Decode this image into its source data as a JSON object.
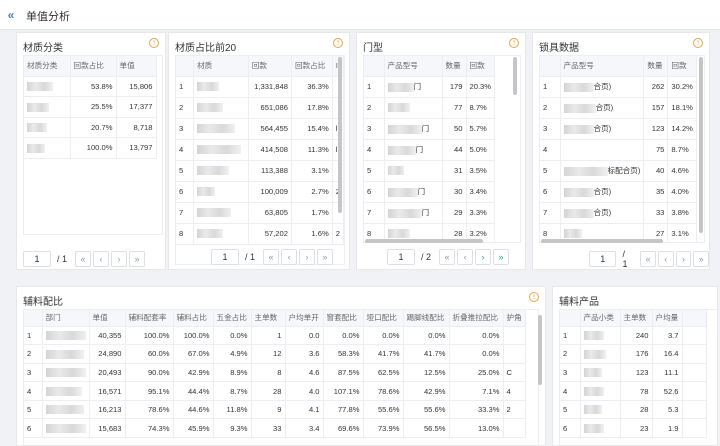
{
  "header": {
    "title": "单值分析",
    "collapse_icon": "«"
  },
  "panel1": {
    "title": "材质分类",
    "cols": [
      "材质分类",
      "回款占比",
      "单值"
    ],
    "rows": [
      [
        "",
        "53.8%",
        "15,806"
      ],
      [
        "",
        "25.5%",
        "17,377"
      ],
      [
        "",
        "20.7%",
        "8,718"
      ],
      [
        "",
        "100.0%",
        "13,797"
      ]
    ],
    "page": "1",
    "total": "/ 1"
  },
  "panel2": {
    "title": "材质占比前20",
    "cols": [
      "",
      "材质",
      "回款",
      "回款占比",
      "I"
    ],
    "rows": [
      [
        "1",
        "",
        "1,331,848",
        "36.3%",
        ""
      ],
      [
        "2",
        "",
        "651,086",
        "17.8%",
        ""
      ],
      [
        "3",
        "",
        "564,455",
        "15.4%",
        "l"
      ],
      [
        "4",
        "",
        "414,508",
        "11.3%",
        "l"
      ],
      [
        "5",
        "",
        "113,388",
        "3.1%",
        ""
      ],
      [
        "6",
        "",
        "100,009",
        "2.7%",
        "2"
      ],
      [
        "7",
        "",
        "63,805",
        "1.7%",
        ""
      ],
      [
        "8",
        "",
        "57,202",
        "1.6%",
        "2"
      ]
    ],
    "page": "1",
    "total": "/ 1"
  },
  "panel3": {
    "title": "门型",
    "cols": [
      "",
      "产品型号",
      "数量",
      "回款"
    ],
    "rows": [
      [
        "1",
        "门",
        "179",
        "20.3%"
      ],
      [
        "2",
        "",
        "77",
        "8.7%"
      ],
      [
        "3",
        "门",
        "50",
        "5.7%"
      ],
      [
        "4",
        "门",
        "44",
        "5.0%"
      ],
      [
        "5",
        "",
        "31",
        "3.5%"
      ],
      [
        "6",
        "门",
        "30",
        "3.4%"
      ],
      [
        "7",
        "门",
        "29",
        "3.3%"
      ],
      [
        "8",
        "",
        "28",
        "3.2%"
      ]
    ],
    "page": "1",
    "total": "/ 2"
  },
  "panel4": {
    "title": "锁具数据",
    "cols": [
      "",
      "产品型号",
      "数量",
      "回款"
    ],
    "rows": [
      [
        "1",
        "合页)",
        "262",
        "30.2%"
      ],
      [
        "2",
        "合页)",
        "157",
        "18.1%"
      ],
      [
        "3",
        "合页)",
        "123",
        "14.2%"
      ],
      [
        "4",
        "",
        "75",
        "8.7%"
      ],
      [
        "5",
        "标配合页)",
        "40",
        "4.6%"
      ],
      [
        "6",
        "合页)",
        "35",
        "4.0%"
      ],
      [
        "7",
        "合页)",
        "33",
        "3.8%"
      ],
      [
        "8",
        "",
        "27",
        "3.1%"
      ]
    ],
    "page": "1",
    "total": "/ 1"
  },
  "panel5": {
    "title": "辅料配比",
    "cols": [
      "",
      "部门",
      "单值",
      "辅料配套率",
      "辅料占比",
      "五金占比",
      "主单数",
      "户均单开",
      "窗套配比",
      "垭口配比",
      "踢脚线配比",
      "折叠推拉配比",
      "护角"
    ],
    "rows": [
      [
        "1",
        "",
        "40,355",
        "100.0%",
        "100.0%",
        "0.0%",
        "1",
        "0.0",
        "0.0%",
        "0.0%",
        "0.0%",
        "0.0%",
        ""
      ],
      [
        "2",
        "",
        "24,890",
        "60.0%",
        "67.0%",
        "4.9%",
        "12",
        "3.6",
        "58.3%",
        "41.7%",
        "41.7%",
        "0.0%",
        ""
      ],
      [
        "3",
        "",
        "20,493",
        "90.0%",
        "42.9%",
        "8.9%",
        "8",
        "4.6",
        "87.5%",
        "62.5%",
        "12.5%",
        "25.0%",
        "C"
      ],
      [
        "4",
        "",
        "16,571",
        "95.1%",
        "44.4%",
        "8.7%",
        "28",
        "4.0",
        "107.1%",
        "78.6%",
        "42.9%",
        "7.1%",
        "4"
      ],
      [
        "5",
        "",
        "16,213",
        "78.6%",
        "44.6%",
        "11.8%",
        "9",
        "4.1",
        "77.8%",
        "55.6%",
        "55.6%",
        "33.3%",
        "2"
      ],
      [
        "6",
        "",
        "15,683",
        "74.3%",
        "45.9%",
        "9.3%",
        "33",
        "3.4",
        "69.6%",
        "73.9%",
        "56.5%",
        "13.0%",
        ""
      ]
    ]
  },
  "panel6": {
    "title": "辅料产品",
    "cols": [
      "",
      "产品小类",
      "主单数",
      "户均量",
      ""
    ],
    "rows": [
      [
        "1",
        "",
        "240",
        "3.7",
        ""
      ],
      [
        "2",
        "",
        "176",
        "16.4",
        ""
      ],
      [
        "3",
        "",
        "123",
        "11.1",
        ""
      ],
      [
        "4",
        "",
        "78",
        "52.6",
        ""
      ],
      [
        "5",
        "",
        "28",
        "5.3",
        ""
      ],
      [
        "6",
        "",
        "23",
        "1.9",
        ""
      ]
    ]
  },
  "pager_icons": {
    "first": "«",
    "prev": "‹",
    "next": "›",
    "last": "»"
  },
  "info_icon": "!"
}
